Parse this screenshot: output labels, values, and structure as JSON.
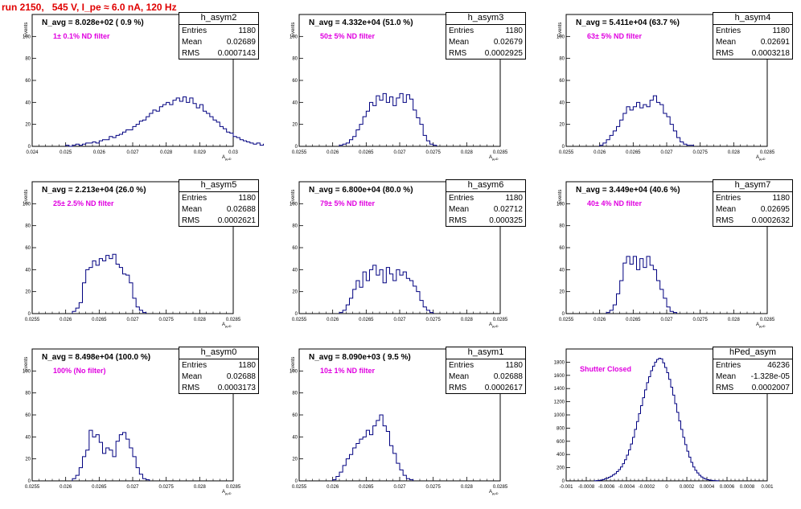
{
  "page_title": "run 2150,   545 V, I_pe ≈ 6.0 nA, 120 Hz",
  "chart_data": [
    {
      "id": "h_asym2",
      "type": "bar",
      "title": "h_asym2",
      "xlabel": "A",
      "xlabel_sub": "μμD",
      "ylabel": "Events",
      "xlim": [
        0.024,
        0.03
      ],
      "ylim": [
        0,
        120
      ],
      "x_ticks": [
        "0.024",
        "0.025",
        "0.026",
        "0.027",
        "0.028",
        "0.029",
        "0.03"
      ],
      "x_tick_values": [
        0.024,
        0.025,
        0.026,
        0.027,
        0.028,
        0.029,
        0.03
      ],
      "y_ticks": [
        "0",
        "20",
        "40",
        "60",
        "80",
        "100"
      ],
      "y_tick_values": [
        0,
        20,
        40,
        60,
        80,
        100
      ],
      "stats": {
        "entries": "1180",
        "mean": "0.02689",
        "rms": "0.0007143"
      },
      "n_avg": "N_avg = 8.028e+02 ( 0.9 %)",
      "note": "1± 0.1% ND filter",
      "bin_start": 0.025,
      "bin_width": 0.0001,
      "values": [
        1,
        0,
        1,
        2,
        1,
        2,
        3,
        3,
        4,
        3,
        5,
        6,
        6,
        9,
        8,
        10,
        11,
        13,
        15,
        15,
        18,
        20,
        23,
        24,
        27,
        30,
        33,
        32,
        36,
        38,
        40,
        38,
        42,
        44,
        41,
        45,
        40,
        44,
        39,
        35,
        38,
        32,
        30,
        27,
        24,
        22,
        18,
        16,
        13,
        12,
        9,
        8,
        6,
        5,
        4,
        3,
        2,
        3,
        1,
        2,
        1,
        0,
        1
      ]
    },
    {
      "id": "h_asym3",
      "type": "bar",
      "title": "h_asym3",
      "xlabel": "A",
      "xlabel_sub": "μμD",
      "ylabel": "Events",
      "xlim": [
        0.0255,
        0.0285
      ],
      "ylim": [
        0,
        120
      ],
      "x_ticks": [
        "0.0255",
        "0.026",
        "0.0265",
        "0.027",
        "0.0275",
        "0.028",
        "0.0285"
      ],
      "x_tick_values": [
        0.0255,
        0.026,
        0.0265,
        0.027,
        0.0275,
        0.028,
        0.0285
      ],
      "y_ticks": [
        "0",
        "20",
        "40",
        "60",
        "80",
        "100"
      ],
      "y_tick_values": [
        0,
        20,
        40,
        60,
        80,
        100
      ],
      "stats": {
        "entries": "1180",
        "mean": "0.02679",
        "rms": "0.0002925"
      },
      "n_avg": "N_avg = 4.332e+04 (51.0 %)",
      "note": "50± 5% ND filter",
      "bin_start": 0.0261,
      "bin_width": 5e-05,
      "values": [
        1,
        2,
        3,
        6,
        9,
        15,
        20,
        27,
        32,
        40,
        37,
        46,
        42,
        48,
        40,
        45,
        37,
        44,
        48,
        40,
        47,
        43,
        33,
        26,
        20,
        10,
        5,
        2,
        1
      ]
    },
    {
      "id": "h_asym4",
      "type": "bar",
      "title": "h_asym4",
      "xlabel": "A",
      "xlabel_sub": "μμD",
      "ylabel": "Events",
      "xlim": [
        0.0255,
        0.0285
      ],
      "ylim": [
        0,
        120
      ],
      "x_ticks": [
        "0.0255",
        "0.026",
        "0.0265",
        "0.027",
        "0.0275",
        "0.028",
        "0.0285"
      ],
      "x_tick_values": [
        0.0255,
        0.026,
        0.0265,
        0.027,
        0.0275,
        0.028,
        0.0285
      ],
      "y_ticks": [
        "0",
        "20",
        "40",
        "60",
        "80",
        "100"
      ],
      "y_tick_values": [
        0,
        20,
        40,
        60,
        80,
        100
      ],
      "stats": {
        "entries": "1180",
        "mean": "0.02691",
        "rms": "0.0003218"
      },
      "n_avg": "N_avg = 5.411e+04 (63.7 %)",
      "note": "63± 5% ND filter",
      "bin_start": 0.026,
      "bin_width": 5e-05,
      "values": [
        1,
        3,
        6,
        10,
        14,
        18,
        24,
        30,
        36,
        33,
        36,
        40,
        35,
        38,
        36,
        42,
        46,
        40,
        38,
        30,
        27,
        20,
        14,
        8,
        4,
        2,
        1,
        1
      ]
    },
    {
      "id": "h_asym5",
      "type": "bar",
      "title": "h_asym5",
      "xlabel": "A",
      "xlabel_sub": "μμD",
      "ylabel": "Events",
      "xlim": [
        0.0255,
        0.0285
      ],
      "ylim": [
        0,
        120
      ],
      "x_ticks": [
        "0.0255",
        "0.026",
        "0.0265",
        "0.027",
        "0.0275",
        "0.028",
        "0.0285"
      ],
      "x_tick_values": [
        0.0255,
        0.026,
        0.0265,
        0.027,
        0.0275,
        0.028,
        0.0285
      ],
      "y_ticks": [
        "0",
        "20",
        "40",
        "60",
        "80",
        "100"
      ],
      "y_tick_values": [
        0,
        20,
        40,
        60,
        80,
        100
      ],
      "stats": {
        "entries": "1180",
        "mean": "0.02688",
        "rms": "0.0002621"
      },
      "n_avg": "N_avg = 2.213e+04 (26.0 %)",
      "note": "25± 2.5% ND filter",
      "bin_start": 0.0261,
      "bin_width": 5e-05,
      "values": [
        2,
        5,
        10,
        28,
        40,
        42,
        48,
        44,
        50,
        48,
        53,
        50,
        54,
        45,
        42,
        36,
        35,
        28,
        14,
        6,
        3,
        1
      ]
    },
    {
      "id": "h_asym6",
      "type": "bar",
      "title": "h_asym6",
      "xlabel": "A",
      "xlabel_sub": "μμD",
      "ylabel": "Events",
      "xlim": [
        0.0255,
        0.0285
      ],
      "ylim": [
        0,
        120
      ],
      "x_ticks": [
        "0.0255",
        "0.026",
        "0.0265",
        "0.027",
        "0.0275",
        "0.028",
        "0.0285"
      ],
      "x_tick_values": [
        0.0255,
        0.026,
        0.0265,
        0.027,
        0.0275,
        0.028,
        0.0285
      ],
      "y_ticks": [
        "0",
        "20",
        "40",
        "60",
        "80",
        "100"
      ],
      "y_tick_values": [
        0,
        20,
        40,
        60,
        80,
        100
      ],
      "stats": {
        "entries": "1180",
        "mean": "0.02712",
        "rms": "0.000325"
      },
      "n_avg": "N_avg = 6.800e+04 (80.0 %)",
      "note": "79± 5% ND filter",
      "bin_start": 0.0261,
      "bin_width": 5e-05,
      "values": [
        1,
        3,
        8,
        14,
        22,
        30,
        24,
        38,
        30,
        40,
        44,
        35,
        40,
        28,
        42,
        36,
        30,
        40,
        35,
        38,
        32,
        30,
        25,
        20,
        12,
        6,
        3,
        1
      ]
    },
    {
      "id": "h_asym7",
      "type": "bar",
      "title": "h_asym7",
      "xlabel": "A",
      "xlabel_sub": "μμD",
      "ylabel": "Events",
      "xlim": [
        0.0255,
        0.0285
      ],
      "ylim": [
        0,
        120
      ],
      "x_ticks": [
        "0.0255",
        "0.026",
        "0.0265",
        "0.027",
        "0.0275",
        "0.028",
        "0.0285"
      ],
      "x_tick_values": [
        0.0255,
        0.026,
        0.0265,
        0.027,
        0.0275,
        0.028,
        0.0285
      ],
      "y_ticks": [
        "0",
        "20",
        "40",
        "60",
        "80",
        "100"
      ],
      "y_tick_values": [
        0,
        20,
        40,
        60,
        80,
        100
      ],
      "stats": {
        "entries": "1180",
        "mean": "0.02695",
        "rms": "0.0002632"
      },
      "n_avg": "N_avg = 3.449e+04 (40.6 %)",
      "note": "40± 4% ND filter",
      "bin_start": 0.0261,
      "bin_width": 5e-05,
      "values": [
        1,
        3,
        8,
        18,
        30,
        46,
        52,
        45,
        52,
        40,
        50,
        42,
        52,
        44,
        40,
        30,
        22,
        14,
        6,
        2,
        1
      ]
    },
    {
      "id": "h_asym0",
      "type": "bar",
      "title": "h_asym0",
      "xlabel": "A",
      "xlabel_sub": "μμD",
      "ylabel": "Events",
      "xlim": [
        0.0255,
        0.0285
      ],
      "ylim": [
        0,
        120
      ],
      "x_ticks": [
        "0.0255",
        "0.026",
        "0.0265",
        "0.027",
        "0.0275",
        "0.028",
        "0.0285"
      ],
      "x_tick_values": [
        0.0255,
        0.026,
        0.0265,
        0.027,
        0.0275,
        0.028,
        0.0285
      ],
      "y_ticks": [
        "0",
        "20",
        "40",
        "60",
        "80",
        "100"
      ],
      "y_tick_values": [
        0,
        20,
        40,
        60,
        80,
        100
      ],
      "stats": {
        "entries": "1180",
        "mean": "0.02688",
        "rms": "0.0003173"
      },
      "n_avg": "N_avg = 8.498e+04 (100.0 %)",
      "note": "100% (No filter)",
      "bin_start": 0.0261,
      "bin_width": 5e-05,
      "values": [
        2,
        5,
        12,
        22,
        28,
        46,
        40,
        42,
        35,
        25,
        30,
        28,
        22,
        36,
        42,
        44,
        38,
        30,
        22,
        12,
        6,
        2,
        1
      ]
    },
    {
      "id": "h_asym1",
      "type": "bar",
      "title": "h_asym1",
      "xlabel": "A",
      "xlabel_sub": "μμD",
      "ylabel": "Events",
      "xlim": [
        0.0255,
        0.0285
      ],
      "ylim": [
        0,
        120
      ],
      "x_ticks": [
        "0.0255",
        "0.026",
        "0.0265",
        "0.027",
        "0.0275",
        "0.028",
        "0.0285"
      ],
      "x_tick_values": [
        0.0255,
        0.026,
        0.0265,
        0.027,
        0.0275,
        0.028,
        0.0285
      ],
      "y_ticks": [
        "0",
        "20",
        "40",
        "60",
        "80",
        "100"
      ],
      "y_tick_values": [
        0,
        20,
        40,
        60,
        80,
        100
      ],
      "stats": {
        "entries": "1180",
        "mean": "0.02688",
        "rms": "0.0002617"
      },
      "n_avg": "N_avg = 8.090e+03 ( 9.5 %)",
      "note": "10± 1% ND filter",
      "bin_start": 0.026,
      "bin_width": 5e-05,
      "values": [
        1,
        4,
        8,
        14,
        20,
        24,
        30,
        34,
        38,
        40,
        46,
        42,
        50,
        55,
        60,
        50,
        45,
        32,
        25,
        16,
        10,
        5,
        2,
        1
      ]
    },
    {
      "id": "hPed_asym",
      "type": "bar",
      "title": "hPed_asym",
      "xlabel": "",
      "xlabel_sub": "",
      "ylabel": "",
      "xlim": [
        -0.001,
        0.001
      ],
      "ylim": [
        0,
        2000
      ],
      "x_ticks": [
        "-0.001",
        "-0.0008",
        "-0.0006",
        "-0.0004",
        "-0.0002",
        "0",
        "0.0002",
        "0.0004",
        "0.0006",
        "0.0008",
        "0.001"
      ],
      "x_tick_values": [
        -0.001,
        -0.0008,
        -0.0006,
        -0.0004,
        -0.0002,
        0,
        0.0002,
        0.0004,
        0.0006,
        0.0008,
        0.001
      ],
      "y_ticks": [
        "0",
        "200",
        "400",
        "600",
        "800",
        "1000",
        "1200",
        "1400",
        "1600",
        "1800"
      ],
      "y_tick_values": [
        0,
        200,
        400,
        600,
        800,
        1000,
        1200,
        1400,
        1600,
        1800
      ],
      "stats": {
        "entries": "46236",
        "mean": "-1.328e-05",
        "rms": "0.0002007"
      },
      "n_avg": "",
      "note": "Shutter Closed",
      "bin_start": -0.00072,
      "bin_width": 2e-05,
      "values": [
        2,
        4,
        8,
        12,
        20,
        30,
        40,
        55,
        70,
        90,
        110,
        140,
        170,
        210,
        260,
        320,
        390,
        470,
        560,
        660,
        780,
        900,
        1020,
        1140,
        1260,
        1380,
        1490,
        1580,
        1670,
        1740,
        1800,
        1840,
        1860,
        1850,
        1790,
        1720,
        1640,
        1540,
        1420,
        1300,
        1170,
        1040,
        910,
        780,
        660,
        550,
        450,
        360,
        280,
        210,
        160,
        120,
        85,
        60,
        40,
        28,
        18,
        12,
        8,
        5,
        3,
        2
      ]
    }
  ]
}
